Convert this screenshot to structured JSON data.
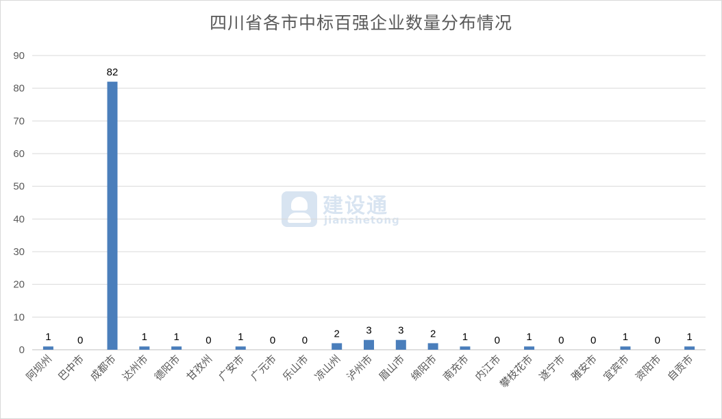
{
  "chart_data": {
    "type": "bar",
    "title": "四川省各市中标百强企业数量分布情况",
    "categories": [
      "阿坝州",
      "巴中市",
      "成都市",
      "达州市",
      "德阳市",
      "甘孜州",
      "广安市",
      "广元市",
      "乐山市",
      "凉山州",
      "泸州市",
      "眉山市",
      "绵阳市",
      "南充市",
      "内江市",
      "攀枝花市",
      "遂宁市",
      "雅安市",
      "宜宾市",
      "资阳市",
      "自贡市"
    ],
    "values": [
      1,
      0,
      82,
      1,
      1,
      0,
      1,
      0,
      0,
      2,
      3,
      3,
      2,
      1,
      0,
      1,
      0,
      0,
      1,
      0,
      1
    ],
    "ylim": [
      0,
      90
    ],
    "yticks": [
      0,
      10,
      20,
      30,
      40,
      50,
      60,
      70,
      80,
      90
    ],
    "grid": true,
    "legend": "none",
    "bar_color": "#4a7ebb"
  },
  "watermark": {
    "brand": "建设通",
    "sub": "jianshetong",
    "icon": "hardhat-worker-icon"
  }
}
